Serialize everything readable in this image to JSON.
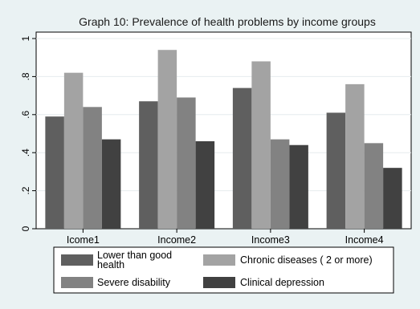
{
  "chart_data": {
    "type": "bar",
    "title": "Graph 10: Prevalence of health problems by income groups",
    "xlabel": "",
    "ylabel": "",
    "categories": [
      "Icome1",
      "Income2",
      "Income3",
      "Income4"
    ],
    "ylim": [
      0,
      1
    ],
    "yticks": [
      {
        "value": 0,
        "label": "0"
      },
      {
        "value": 0.2,
        "label": ".2"
      },
      {
        "value": 0.4,
        "label": ".4"
      },
      {
        "value": 0.6,
        "label": ".6"
      },
      {
        "value": 0.8,
        "label": ".8"
      },
      {
        "value": 1,
        "label": "1"
      }
    ],
    "grid": true,
    "legend_position": "bottom",
    "series": [
      {
        "name": "Lower than good health",
        "legend_lines": [
          "Lower than good",
          "health"
        ],
        "color": "#5f5f5f",
        "values": [
          0.59,
          0.67,
          0.74,
          0.61
        ]
      },
      {
        "name": "Chronic diseases ( 2 or more)",
        "legend_lines": [
          "Chronic diseases ( 2 or more)"
        ],
        "color": "#a3a3a3",
        "values": [
          0.82,
          0.94,
          0.88,
          0.76
        ]
      },
      {
        "name": "Severe disability",
        "legend_lines": [
          "Severe disability"
        ],
        "color": "#828282",
        "values": [
          0.64,
          0.69,
          0.47,
          0.45
        ]
      },
      {
        "name": "Clinical depression",
        "legend_lines": [
          "Clinical depression"
        ],
        "color": "#414141",
        "values": [
          0.47,
          0.46,
          0.44,
          0.32
        ]
      }
    ]
  }
}
